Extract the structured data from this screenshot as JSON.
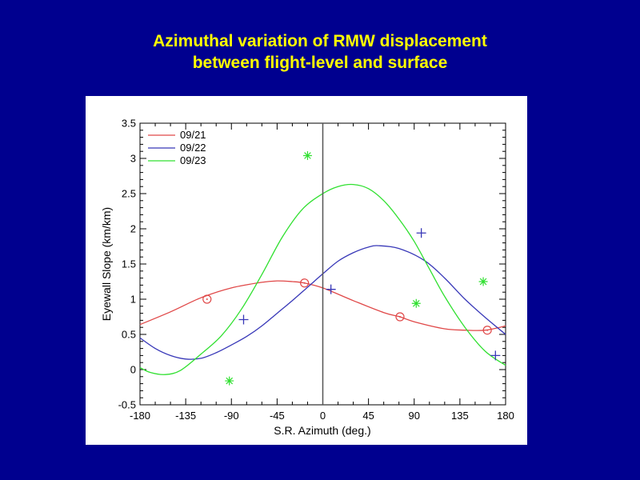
{
  "slide": {
    "title_line1": "Azimuthal variation of RMW displacement",
    "title_line2": "between flight-level and surface"
  },
  "colors": {
    "background": "#00008f",
    "title": "#ffff00",
    "09/21": "#e04848",
    "09/22": "#3838b8",
    "09/23": "#30e030"
  },
  "chart_data": {
    "type": "scatter",
    "title": "",
    "xlabel": "S.R. Azimuth (deg.)",
    "ylabel": "Eyewall Slope (km/km)",
    "xlim": [
      -180,
      180
    ],
    "ylim": [
      -0.5,
      3.5
    ],
    "xticks": [
      -180,
      -135,
      -90,
      -45,
      0,
      45,
      90,
      135,
      180
    ],
    "yticks": [
      -0.5,
      0,
      0.5,
      1,
      1.5,
      2,
      2.5,
      3,
      3.5
    ],
    "xtick_labels": [
      "-180",
      "-135",
      "-90",
      "-45",
      "0",
      "45",
      "90",
      "135",
      "180"
    ],
    "ytick_labels": [
      "-0.5",
      "0",
      "0.5",
      "1",
      "1.5",
      "2",
      "2.5",
      "3",
      "3.5"
    ],
    "reference_line_x": 0,
    "grid": false,
    "legend_position": "top-left",
    "series": [
      {
        "name": "09/21",
        "marker": "circle",
        "points": [
          [
            -114,
            1.0
          ],
          [
            -18,
            1.23
          ],
          [
            76,
            0.75
          ],
          [
            162,
            0.56
          ]
        ],
        "fit_curve": [
          [
            -180,
            0.64
          ],
          [
            -150,
            0.82
          ],
          [
            -120,
            1.02
          ],
          [
            -90,
            1.16
          ],
          [
            -60,
            1.24
          ],
          [
            -45,
            1.26
          ],
          [
            -30,
            1.25
          ],
          [
            -18,
            1.23
          ],
          [
            0,
            1.16
          ],
          [
            30,
            0.98
          ],
          [
            60,
            0.81
          ],
          [
            76,
            0.75
          ],
          [
            90,
            0.68
          ],
          [
            120,
            0.58
          ],
          [
            140,
            0.56
          ],
          [
            160,
            0.56
          ],
          [
            180,
            0.62
          ]
        ]
      },
      {
        "name": "09/22",
        "marker": "plus",
        "points": [
          [
            -78,
            0.71
          ],
          [
            8,
            1.14
          ],
          [
            97,
            1.94
          ],
          [
            170,
            0.2
          ]
        ],
        "fit_curve": [
          [
            -180,
            0.45
          ],
          [
            -165,
            0.3
          ],
          [
            -150,
            0.2
          ],
          [
            -135,
            0.15
          ],
          [
            -120,
            0.16
          ],
          [
            -105,
            0.24
          ],
          [
            -90,
            0.35
          ],
          [
            -75,
            0.47
          ],
          [
            -60,
            0.62
          ],
          [
            -45,
            0.8
          ],
          [
            -30,
            0.98
          ],
          [
            -15,
            1.17
          ],
          [
            0,
            1.36
          ],
          [
            15,
            1.54
          ],
          [
            30,
            1.66
          ],
          [
            45,
            1.74
          ],
          [
            55,
            1.76
          ],
          [
            75,
            1.72
          ],
          [
            100,
            1.55
          ],
          [
            120,
            1.3
          ],
          [
            140,
            1.0
          ],
          [
            160,
            0.74
          ],
          [
            180,
            0.5
          ]
        ]
      },
      {
        "name": "09/23",
        "marker": "asterisk",
        "points": [
          [
            -92,
            -0.16
          ],
          [
            -15,
            3.04
          ],
          [
            92,
            0.94
          ],
          [
            158,
            1.25
          ]
        ],
        "fit_curve": [
          [
            -180,
            0.03
          ],
          [
            -170,
            -0.04
          ],
          [
            -155,
            -0.07
          ],
          [
            -140,
            -0.01
          ],
          [
            -120,
            0.22
          ],
          [
            -100,
            0.48
          ],
          [
            -80,
            0.86
          ],
          [
            -60,
            1.35
          ],
          [
            -40,
            1.88
          ],
          [
            -20,
            2.28
          ],
          [
            0,
            2.5
          ],
          [
            15,
            2.6
          ],
          [
            30,
            2.63
          ],
          [
            45,
            2.57
          ],
          [
            60,
            2.4
          ],
          [
            75,
            2.14
          ],
          [
            90,
            1.82
          ],
          [
            105,
            1.43
          ],
          [
            120,
            1.04
          ],
          [
            140,
            0.6
          ],
          [
            160,
            0.26
          ],
          [
            180,
            0.06
          ]
        ]
      }
    ]
  }
}
